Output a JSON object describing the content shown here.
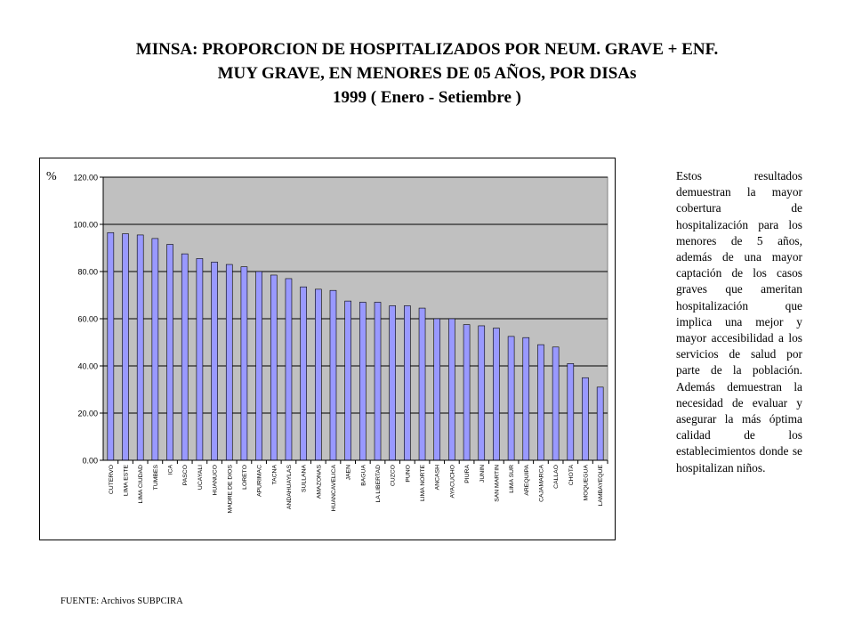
{
  "slide": {
    "title_lines": [
      "MINSA: PROPORCION   DE HOSPITALIZADOS POR NEUM. GRAVE + ENF.",
      "MUY GRAVE, EN MENORES DE 05 AÑOS, POR DISAs",
      "1999 ( Enero - Setiembre )"
    ],
    "side_text": "Estos resultados demuestran la mayor cobertura de hospitalización para los menores de 5 años, además de una mayor captación de los casos graves que ameritan hospitalización que implica una mejor y mayor accesibilidad a los servicios de salud por parte de la población. Además demuestran la necesidad de evaluar y asegurar la más óptima calidad de los establecimientos donde se hospitalizan niños.",
    "source": "FUENTE: Archivos SUBPCIRA"
  },
  "chart_data": {
    "type": "bar",
    "title": "MINSA: PROPORCION   DE HOSPITALIZADOS POR NEUM. GRAVE + ENF. MUY GRAVE, EN MENORES DE 05 AÑOS, POR DISAs 1999 ( Enero - Setiembre )",
    "ylabel": "%",
    "xlabel": "",
    "ylim": [
      0,
      120
    ],
    "yticks": [
      "0.00",
      "20.00",
      "40.00",
      "60.00",
      "80.00",
      "100.00",
      "120.00"
    ],
    "grid": true,
    "legend": "none",
    "colors": {
      "bar": "#9999ff",
      "plot_bg": "#c0c0c0",
      "bar_edge": "#000000"
    },
    "categories": [
      "CUTERVO",
      "LIMA ESTE",
      "LIMA CIUDAD",
      "TUMBES",
      "ICA",
      "PASCO",
      "UCAYALI",
      "HUANUCO",
      "MADRE DE DIOS",
      "LORETO",
      "APURIMAC",
      "TACNA",
      "ANDAHUAYLAS",
      "SULLANA",
      "AMAZONAS",
      "HUANCAVELICA",
      "JAEN",
      "BAGUA",
      "LA LIBERTAD",
      "CUZCO",
      "PUNO",
      "LIMA NORTE",
      "ANCASH",
      "AYACUCHO",
      "PIURA",
      "JUNIN",
      "SAN MARTIN",
      "LIMA SUR",
      "AREQUIPA",
      "CAJAMARCA",
      "CALLAO",
      "CHOTA",
      "MOQUEGUA",
      "LAMBAYEQUE"
    ],
    "values": [
      96.5,
      96,
      95.5,
      94,
      91.5,
      87.5,
      85.5,
      84,
      83,
      82,
      80,
      78.5,
      77,
      73.5,
      72.5,
      72,
      67.5,
      67,
      67,
      65.5,
      65.5,
      64.5,
      60,
      60,
      57.5,
      57,
      56,
      52.5,
      52,
      49,
      48,
      41,
      35,
      31
    ]
  }
}
